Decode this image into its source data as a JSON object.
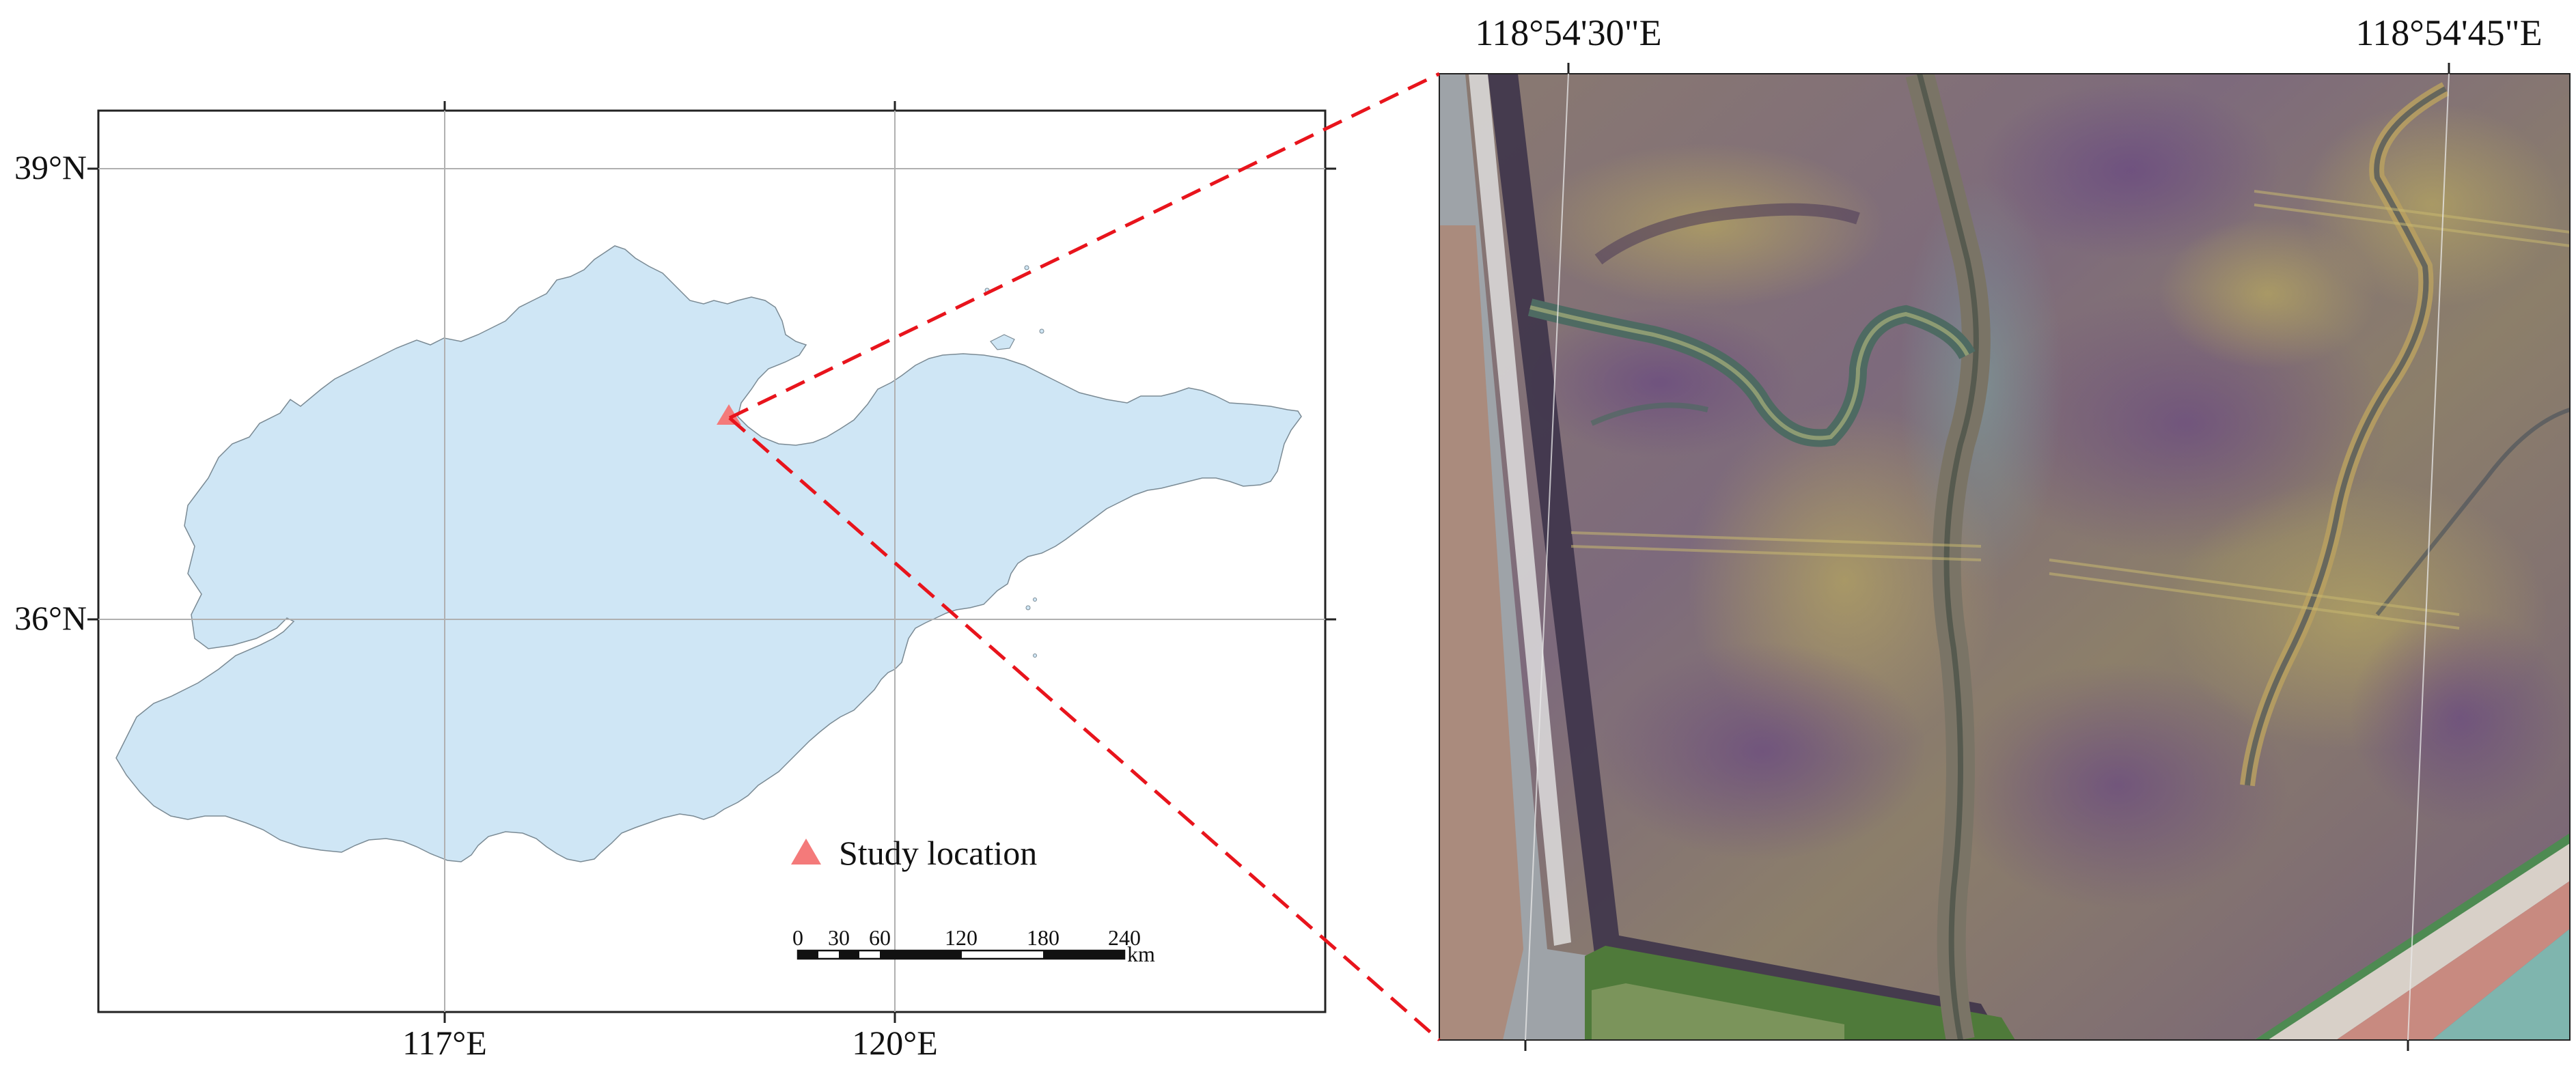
{
  "left_map": {
    "lat_labels": [
      "39°N",
      "36°N"
    ],
    "lon_labels": [
      "117°E",
      "120°E"
    ],
    "legend": {
      "label": "Study location",
      "marker_color": "#f47a7a"
    },
    "scale_bar": {
      "ticks": [
        "0",
        "30",
        "60",
        "120",
        "180",
        "240"
      ],
      "unit": "km"
    },
    "land_color": "#cfe6f5"
  },
  "right_image": {
    "lon_labels": [
      "118°54'30\"E",
      "118°54'45\"E"
    ]
  },
  "connector": {
    "color": "#e8141c",
    "style": "dashed"
  }
}
